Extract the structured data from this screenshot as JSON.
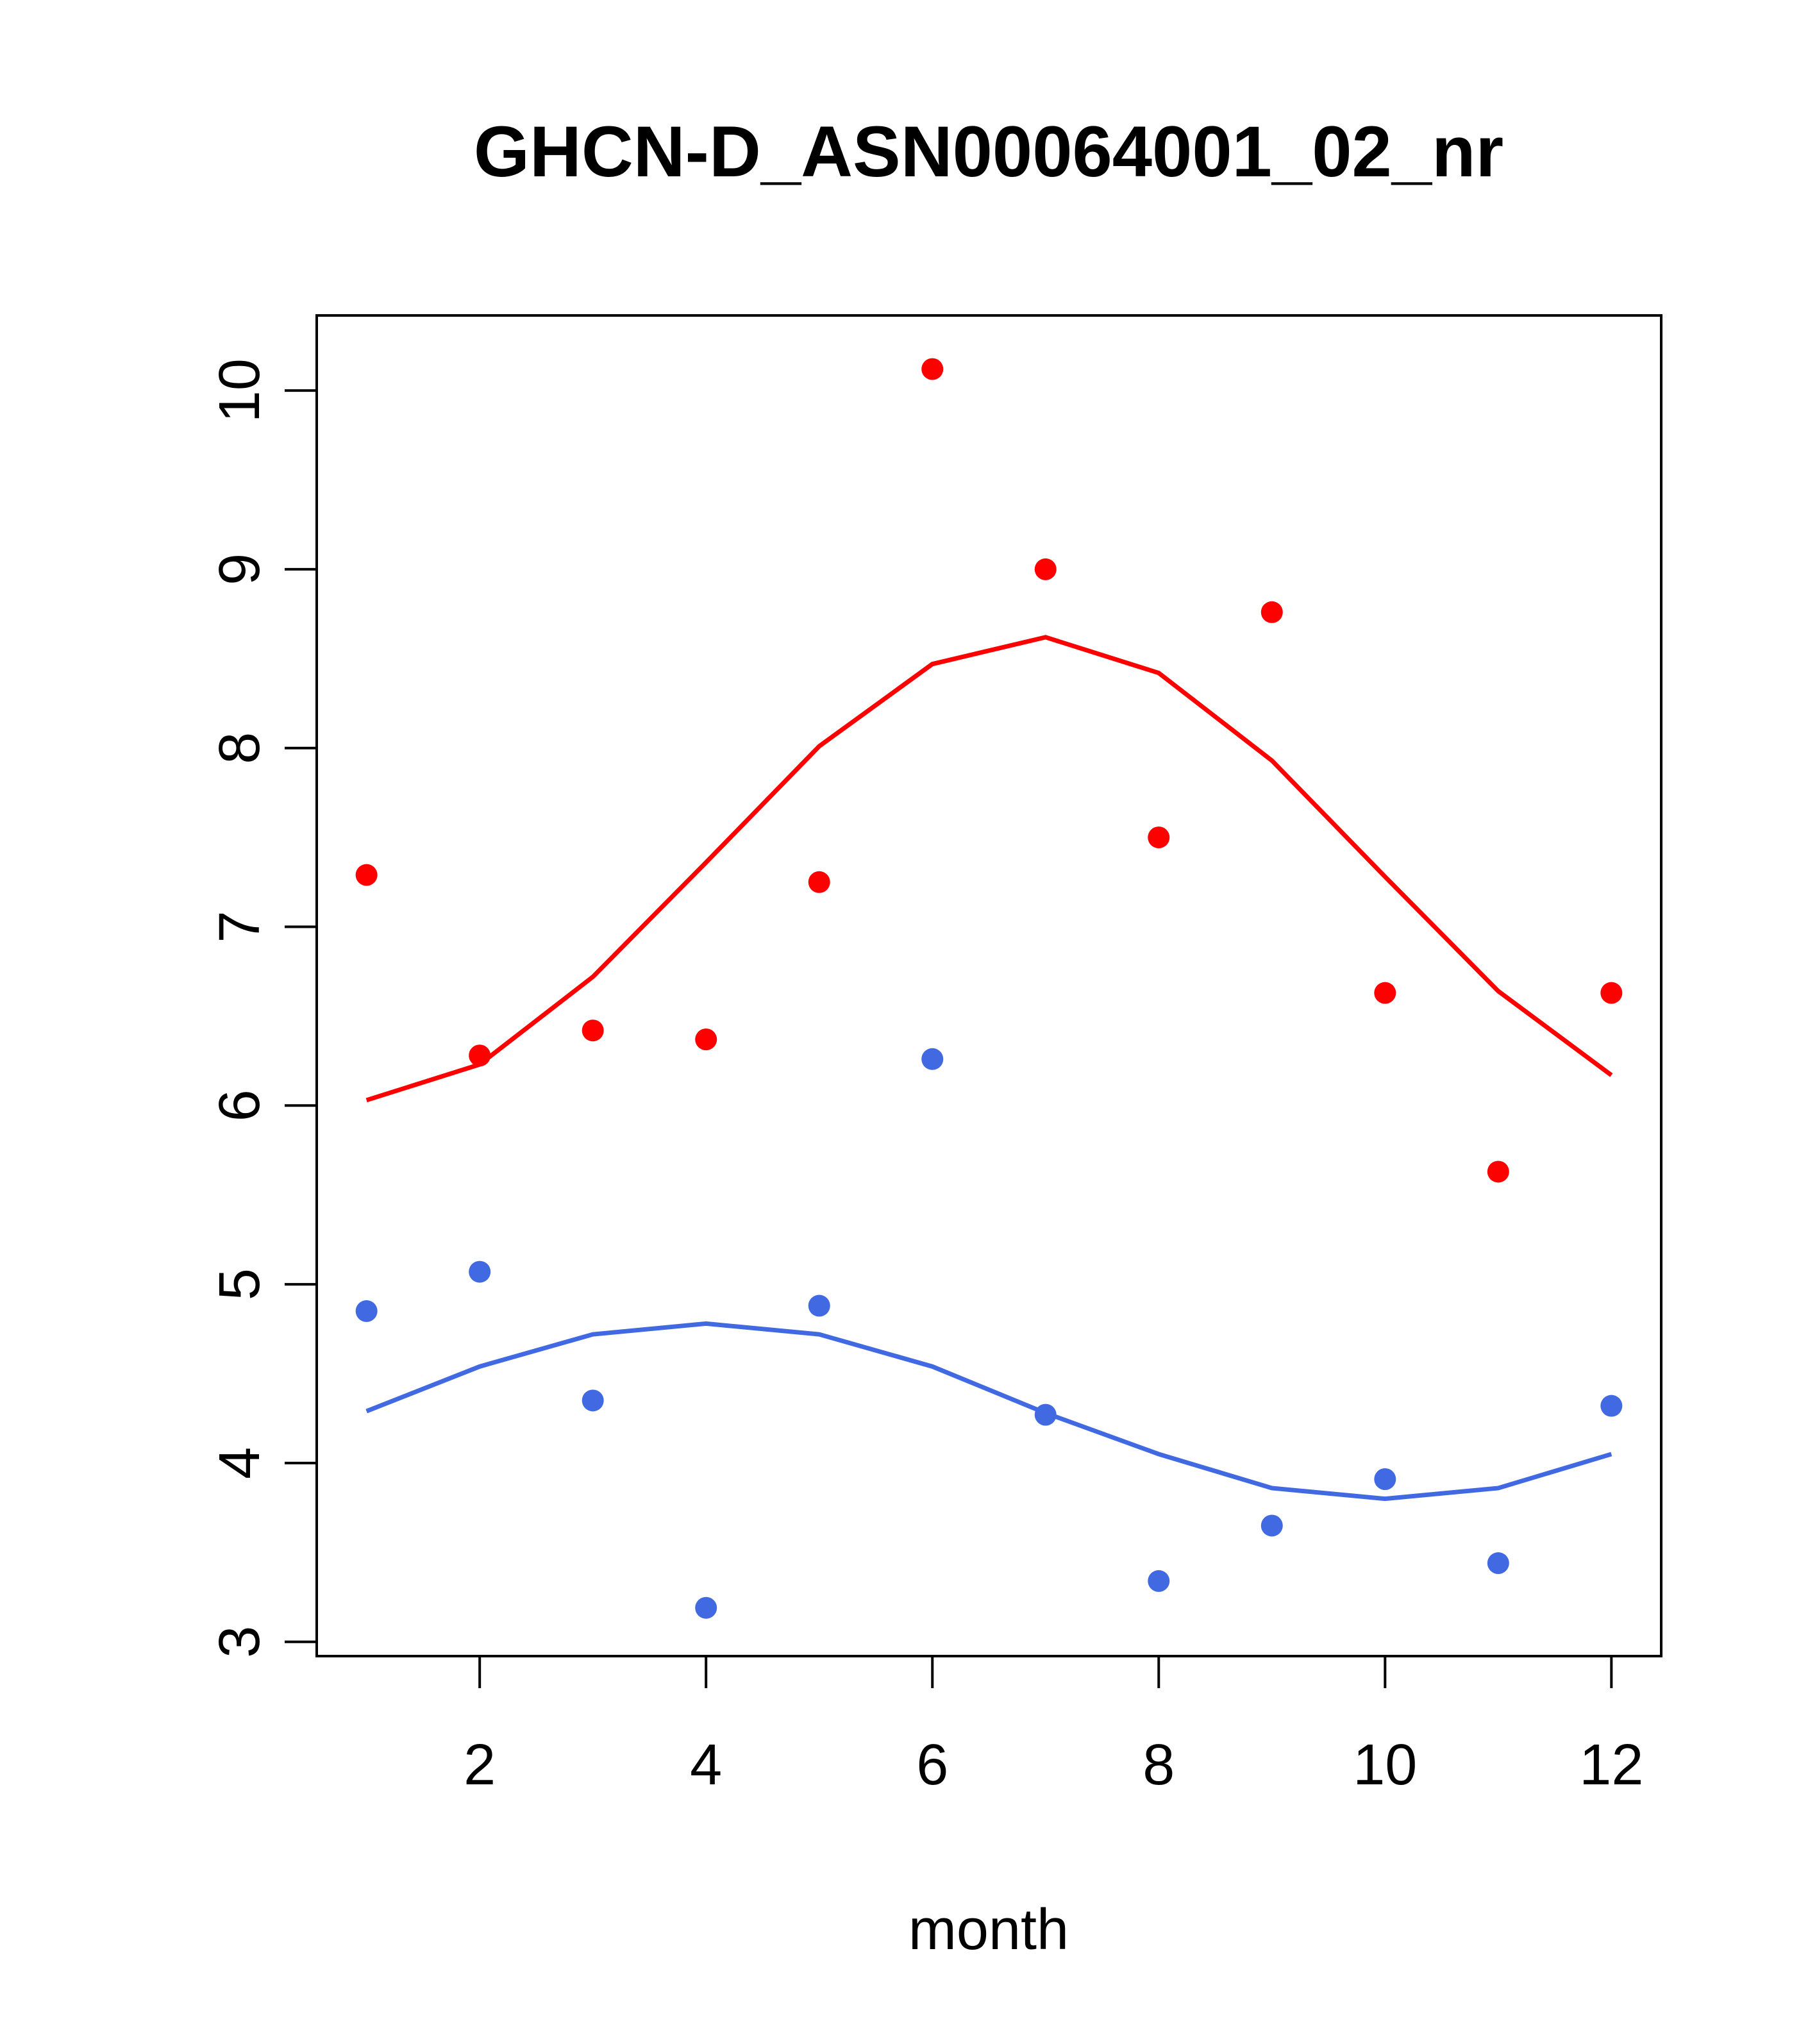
{
  "chart_data": {
    "type": "scatter",
    "title": "GHCN-D_ASN00064001_02_nr",
    "xlabel": "month",
    "ylabel": "",
    "xlim": [
      0.56,
      12.44
    ],
    "ylim": [
      2.92,
      10.42
    ],
    "xticks": [
      2,
      4,
      6,
      8,
      10,
      12
    ],
    "yticks": [
      3,
      4,
      5,
      6,
      7,
      8,
      9,
      10
    ],
    "grid": false,
    "x": [
      1,
      2,
      3,
      4,
      5,
      6,
      7,
      8,
      9,
      10,
      11,
      12
    ],
    "series": [
      {
        "name": "red points",
        "kind": "points",
        "color": "#FF0000",
        "values": [
          7.29,
          6.28,
          6.42,
          6.37,
          7.25,
          10.12,
          9.0,
          7.5,
          8.76,
          6.63,
          5.63,
          6.63
        ]
      },
      {
        "name": "red line",
        "kind": "line",
        "color": "#FF0000",
        "values": [
          6.03,
          6.23,
          6.72,
          7.36,
          8.01,
          8.47,
          8.62,
          8.42,
          7.93,
          7.28,
          6.64,
          6.17
        ]
      },
      {
        "name": "blue points",
        "kind": "points",
        "color": "#4169E1",
        "values": [
          4.85,
          5.07,
          4.35,
          3.19,
          4.88,
          6.26,
          4.27,
          3.34,
          3.65,
          3.91,
          3.44,
          4.32
        ]
      },
      {
        "name": "blue line",
        "kind": "line",
        "color": "#4169E1",
        "values": [
          4.29,
          4.54,
          4.72,
          4.78,
          4.72,
          4.54,
          4.28,
          4.05,
          3.86,
          3.8,
          3.86,
          4.05
        ]
      }
    ]
  }
}
